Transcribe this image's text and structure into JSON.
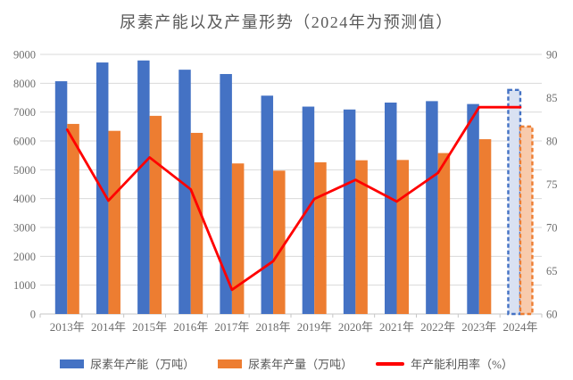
{
  "chart_data": {
    "type": "combo-bar-line",
    "title": "尿素产能以及产量形势（2024年为预测值）",
    "categories": [
      "2013年",
      "2014年",
      "2015年",
      "2016年",
      "2017年",
      "2018年",
      "2019年",
      "2020年",
      "2021年",
      "2022年",
      "2023年",
      "2024年"
    ],
    "series": [
      {
        "name": "尿素年产能（万吨）",
        "type": "bar",
        "axis": "left",
        "color": "#4472C4",
        "forecast_fill": "#D9E1F2",
        "values": [
          8070,
          8720,
          8790,
          8470,
          8320,
          7570,
          7190,
          7090,
          7330,
          7380,
          7280,
          7800
        ]
      },
      {
        "name": "尿素年产量（万吨）",
        "type": "bar",
        "axis": "left",
        "color": "#ED7D31",
        "forecast_fill": "#F8CBAD",
        "values": [
          6590,
          6350,
          6870,
          6280,
          5220,
          4970,
          5260,
          5330,
          5340,
          5580,
          6060,
          6530
        ]
      },
      {
        "name": "年产能利用率（%）",
        "type": "line",
        "axis": "right",
        "color": "#FF0000",
        "values": [
          81.3,
          73.1,
          78.1,
          74.4,
          62.8,
          66.1,
          73.3,
          75.5,
          73.0,
          76.3,
          83.9,
          83.9
        ]
      }
    ],
    "left_axis": {
      "min": 0,
      "max": 9000,
      "step": 1000,
      "ticks": [
        "0",
        "1000",
        "2000",
        "3000",
        "4000",
        "5000",
        "6000",
        "7000",
        "8000",
        "9000"
      ]
    },
    "right_axis": {
      "min": 60,
      "max": 90,
      "step": 5,
      "ticks": [
        "60",
        "65",
        "70",
        "75",
        "80",
        "85",
        "90"
      ]
    },
    "forecast_category": "2024年",
    "forecast_index": 11,
    "forecast_style": "dashed-outline-light-fill",
    "legend_position": "bottom",
    "grid": "horizontal",
    "colors": {
      "gridline": "#D9D9D9",
      "axis_line": "#C6C6C6",
      "tick_text": "#6E6E6E",
      "title_text": "#595959"
    }
  }
}
